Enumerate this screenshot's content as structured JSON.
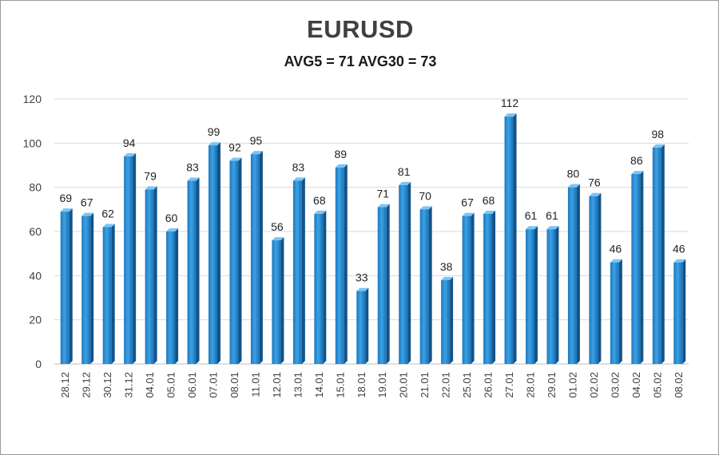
{
  "chart_data": {
    "type": "bar",
    "title": "EURUSD",
    "subtitle": "AVG5 = 71 AVG30 = 73",
    "categories": [
      "28.12",
      "29.12",
      "30.12",
      "31.12",
      "04.01",
      "05.01",
      "06.01",
      "07.01",
      "08.01",
      "11.01",
      "12.01",
      "13.01",
      "14.01",
      "15.01",
      "18.01",
      "19.01",
      "20.01",
      "21.01",
      "22.01",
      "25.01",
      "26.01",
      "27.01",
      "28.01",
      "29.01",
      "01.02",
      "02.02",
      "03.02",
      "04.02",
      "05.02",
      "08.02"
    ],
    "values": [
      69,
      67,
      62,
      94,
      79,
      60,
      83,
      99,
      92,
      95,
      56,
      83,
      68,
      89,
      33,
      71,
      81,
      70,
      38,
      67,
      68,
      112,
      61,
      61,
      80,
      76,
      46,
      86,
      98,
      46
    ],
    "ylim": [
      0,
      120
    ],
    "yticks": [
      "0",
      "20",
      "40",
      "60",
      "80",
      "100",
      "120"
    ],
    "grid": true,
    "data_labels": true,
    "bar_color": "#2a8fd6",
    "bar_dark": "#12538a",
    "grid_color": "#d9d9d9"
  }
}
